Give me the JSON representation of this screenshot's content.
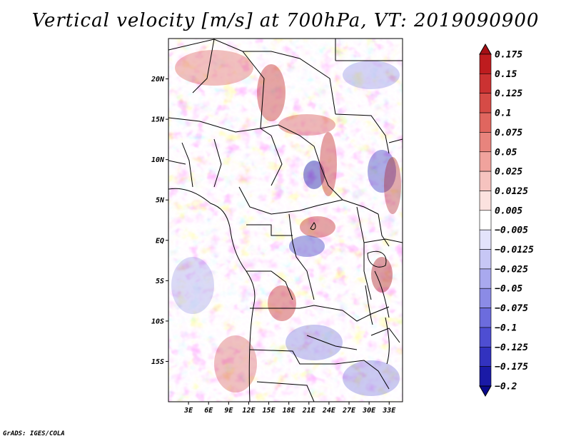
{
  "title": "Vertical velocity [m/s] at 700hPa, VT: 2019090900",
  "credit": "GrADS: IGES/COLA",
  "map": {
    "lat_labels": [
      "20N",
      "15N",
      "10N",
      "5N",
      "EQ",
      "5S",
      "10S",
      "15S"
    ],
    "lat_values": [
      20,
      15,
      10,
      5,
      0,
      -5,
      -10,
      -15
    ],
    "lon_labels": [
      "3E",
      "6E",
      "9E",
      "12E",
      "15E",
      "18E",
      "21E",
      "24E",
      "27E",
      "30E",
      "33E"
    ],
    "lon_values": [
      3,
      6,
      9,
      12,
      15,
      18,
      21,
      24,
      27,
      30,
      33
    ],
    "lon_range": [
      0,
      35
    ],
    "lat_range": [
      -20,
      25
    ]
  },
  "colorbar": {
    "labels": [
      "0.175",
      "0.15",
      "0.125",
      "0.1",
      "0.075",
      "0.05",
      "0.025",
      "0.0125",
      "0.005",
      "−0.005",
      "−0.0125",
      "−0.025",
      "−0.05",
      "−0.075",
      "−0.1",
      "−0.125",
      "−0.175",
      "−0.2"
    ],
    "colors": [
      "#a50f15",
      "#be1c1f",
      "#cb3232",
      "#d64b46",
      "#e0665f",
      "#e8847d",
      "#f0a39d",
      "#f6c3bf",
      "#fbe2df",
      "#ffffff",
      "#e3e3fb",
      "#c7c7f5",
      "#a9a9ee",
      "#8b8be6",
      "#6c6cdd",
      "#4e4ed2",
      "#3232bf",
      "#1a1aa6",
      "#0a0a8c"
    ]
  }
}
